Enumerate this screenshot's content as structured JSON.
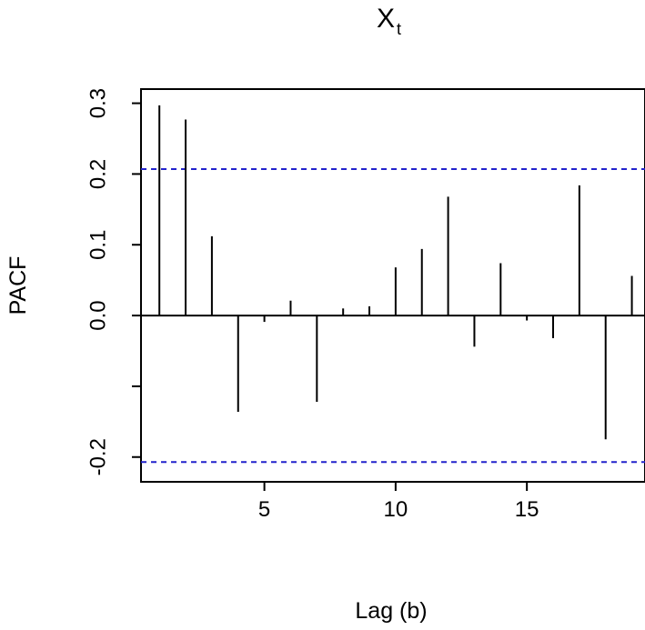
{
  "chart_data": {
    "type": "bar",
    "title": {
      "main": "X",
      "subscript": "t"
    },
    "xlabel": "Lag (b)",
    "ylabel": "PACF",
    "xlim": [
      0.3,
      19.5
    ],
    "ylim": [
      -0.235,
      0.32
    ],
    "xticks": [
      5,
      10,
      15
    ],
    "xtick_labels": [
      "5",
      "10",
      "15"
    ],
    "yticks": [
      -0.2,
      -0.1,
      0.0,
      0.1,
      0.2,
      0.3
    ],
    "ytick_labels": [
      "-0.2",
      "",
      "0.0",
      "0.1",
      "0.2",
      "0.3"
    ],
    "grid": false,
    "zero_line": true,
    "confidence_bounds": [
      0.207,
      -0.207
    ],
    "confidence_color": "#2222cc",
    "bar_color": "#000000",
    "series": [
      {
        "x": [
          1,
          2,
          3,
          4,
          5,
          6,
          7,
          8,
          9,
          10,
          11,
          12,
          13,
          14,
          15,
          16,
          17,
          18,
          19
        ],
        "values": [
          0.297,
          0.277,
          0.112,
          -0.136,
          -0.009,
          0.021,
          -0.122,
          0.01,
          0.013,
          0.068,
          0.094,
          0.168,
          -0.044,
          0.074,
          -0.007,
          -0.032,
          0.184,
          -0.175,
          0.056
        ]
      }
    ]
  }
}
